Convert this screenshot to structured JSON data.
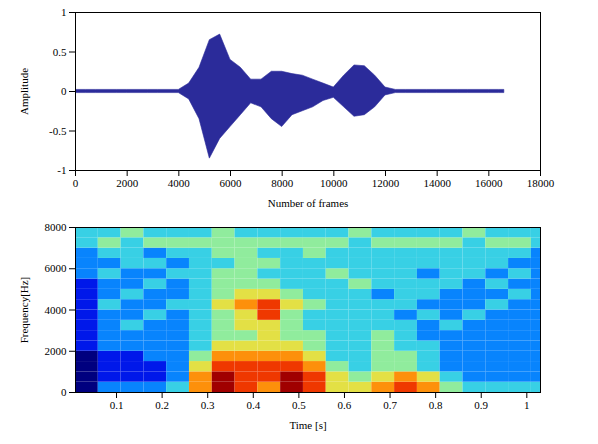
{
  "chart_data": [
    {
      "type": "area",
      "xlabel": "Number of frames",
      "ylabel": "Amplitude",
      "color": "#2b2b9a",
      "x": [
        0,
        400,
        800,
        1200,
        1600,
        2000,
        2400,
        2800,
        3200,
        3600,
        4000,
        4400,
        4800,
        5200,
        5600,
        6000,
        6400,
        6800,
        7200,
        7600,
        8000,
        8400,
        8800,
        9200,
        9600,
        10000,
        10400,
        10800,
        11200,
        11600,
        12000,
        12400,
        12800,
        13200,
        13600,
        14000,
        14400,
        14800,
        15200,
        15600,
        16000,
        16400,
        16600
      ],
      "upper": [
        0.02,
        0.02,
        0.02,
        0.02,
        0.02,
        0.02,
        0.02,
        0.02,
        0.02,
        0.02,
        0.02,
        0.1,
        0.3,
        0.65,
        0.72,
        0.4,
        0.3,
        0.15,
        0.15,
        0.25,
        0.25,
        0.22,
        0.2,
        0.15,
        0.1,
        0.05,
        0.2,
        0.33,
        0.32,
        0.2,
        0.05,
        0.02,
        0.02,
        0.02,
        0.02,
        0.02,
        0.02,
        0.02,
        0.02,
        0.02,
        0.02,
        0.02,
        0.02
      ],
      "lower": [
        -0.02,
        -0.02,
        -0.02,
        -0.02,
        -0.02,
        -0.02,
        -0.02,
        -0.02,
        -0.02,
        -0.02,
        -0.02,
        -0.1,
        -0.35,
        -0.85,
        -0.6,
        -0.45,
        -0.3,
        -0.15,
        -0.2,
        -0.35,
        -0.45,
        -0.3,
        -0.25,
        -0.2,
        -0.12,
        -0.08,
        -0.2,
        -0.32,
        -0.3,
        -0.2,
        -0.05,
        -0.02,
        -0.02,
        -0.02,
        -0.02,
        -0.02,
        -0.02,
        -0.02,
        -0.02,
        -0.02,
        -0.02,
        -0.02,
        -0.02
      ],
      "xlim": [
        0,
        18000
      ],
      "xticks": [
        0,
        2000,
        4000,
        6000,
        8000,
        10000,
        12000,
        14000,
        16000,
        18000
      ],
      "ylim": [
        -1,
        1
      ],
      "yticks": [
        -1,
        -0.5,
        0,
        0.5,
        1
      ]
    },
    {
      "type": "heatmap",
      "xlabel": "Time [s]",
      "ylabel": "Frequency[Hz]",
      "x_edges": [
        0.01,
        0.06,
        0.11,
        0.16,
        0.21,
        0.26,
        0.31,
        0.36,
        0.41,
        0.46,
        0.51,
        0.56,
        0.61,
        0.66,
        0.71,
        0.76,
        0.81,
        0.86,
        0.91,
        0.96,
        1.01,
        1.03
      ],
      "y_edges": [
        0,
        500,
        1000,
        1500,
        2000,
        2500,
        3000,
        3500,
        4000,
        4500,
        5000,
        5500,
        6000,
        6500,
        7000,
        7500,
        8000
      ],
      "cells": [
        [
          1,
          3,
          3,
          3,
          4,
          7,
          9,
          8,
          7,
          9,
          8,
          6,
          6,
          7,
          8,
          7,
          5,
          4,
          4,
          4,
          4
        ],
        [
          1,
          2,
          2,
          2,
          3,
          7,
          9,
          8,
          8,
          9,
          8,
          6,
          5,
          6,
          7,
          6,
          4,
          3,
          3,
          3,
          3
        ],
        [
          1,
          2,
          2,
          2,
          3,
          6,
          8,
          8,
          8,
          8,
          7,
          5,
          4,
          5,
          5,
          4,
          3,
          3,
          3,
          3,
          3
        ],
        [
          1,
          2,
          2,
          3,
          3,
          5,
          7,
          7,
          7,
          7,
          6,
          4,
          4,
          5,
          5,
          4,
          3,
          3,
          3,
          3,
          3
        ],
        [
          2,
          3,
          3,
          3,
          3,
          4,
          6,
          6,
          6,
          6,
          5,
          4,
          4,
          5,
          4,
          4,
          3,
          3,
          3,
          3,
          3
        ],
        [
          2,
          3,
          3,
          3,
          3,
          4,
          5,
          5,
          6,
          5,
          5,
          4,
          4,
          5,
          4,
          3,
          3,
          3,
          3,
          3,
          3
        ],
        [
          2,
          3,
          4,
          3,
          3,
          4,
          5,
          6,
          6,
          5,
          4,
          4,
          4,
          4,
          4,
          3,
          4,
          3,
          3,
          3,
          3
        ],
        [
          2,
          3,
          3,
          4,
          3,
          4,
          5,
          6,
          8,
          5,
          4,
          4,
          4,
          4,
          3,
          4,
          3,
          4,
          3,
          3,
          3
        ],
        [
          2,
          4,
          3,
          3,
          4,
          4,
          6,
          7,
          8,
          6,
          5,
          4,
          4,
          4,
          4,
          3,
          3,
          3,
          4,
          3,
          3
        ],
        [
          2,
          3,
          4,
          3,
          3,
          4,
          5,
          6,
          6,
          5,
          4,
          4,
          4,
          3,
          4,
          4,
          3,
          3,
          3,
          4,
          3
        ],
        [
          2,
          3,
          3,
          4,
          3,
          4,
          5,
          5,
          5,
          4,
          4,
          4,
          5,
          4,
          4,
          4,
          4,
          3,
          4,
          3,
          3
        ],
        [
          3,
          4,
          3,
          3,
          4,
          4,
          5,
          5,
          4,
          4,
          4,
          5,
          4,
          4,
          4,
          3,
          4,
          4,
          3,
          4,
          3
        ],
        [
          3,
          3,
          4,
          4,
          3,
          4,
          4,
          5,
          5,
          4,
          4,
          4,
          4,
          4,
          4,
          4,
          4,
          4,
          4,
          3,
          3
        ],
        [
          3,
          4,
          4,
          3,
          4,
          4,
          5,
          5,
          4,
          4,
          5,
          4,
          4,
          4,
          4,
          4,
          4,
          4,
          4,
          4,
          3
        ],
        [
          4,
          5,
          4,
          5,
          5,
          5,
          5,
          5,
          5,
          5,
          5,
          5,
          4,
          5,
          5,
          5,
          5,
          4,
          5,
          5,
          4
        ],
        [
          4,
          4,
          5,
          4,
          4,
          4,
          5,
          4,
          4,
          4,
          4,
          4,
          5,
          4,
          4,
          4,
          4,
          5,
          4,
          4,
          4
        ]
      ],
      "xlim": [
        0.01,
        1.03
      ],
      "xticks": [
        0.1,
        0.2,
        0.3,
        0.4,
        0.5,
        0.6,
        0.7,
        0.8,
        0.9,
        1
      ],
      "ylim": [
        0,
        8000
      ],
      "yticks": [
        0,
        2000,
        4000,
        6000,
        8000
      ]
    }
  ]
}
